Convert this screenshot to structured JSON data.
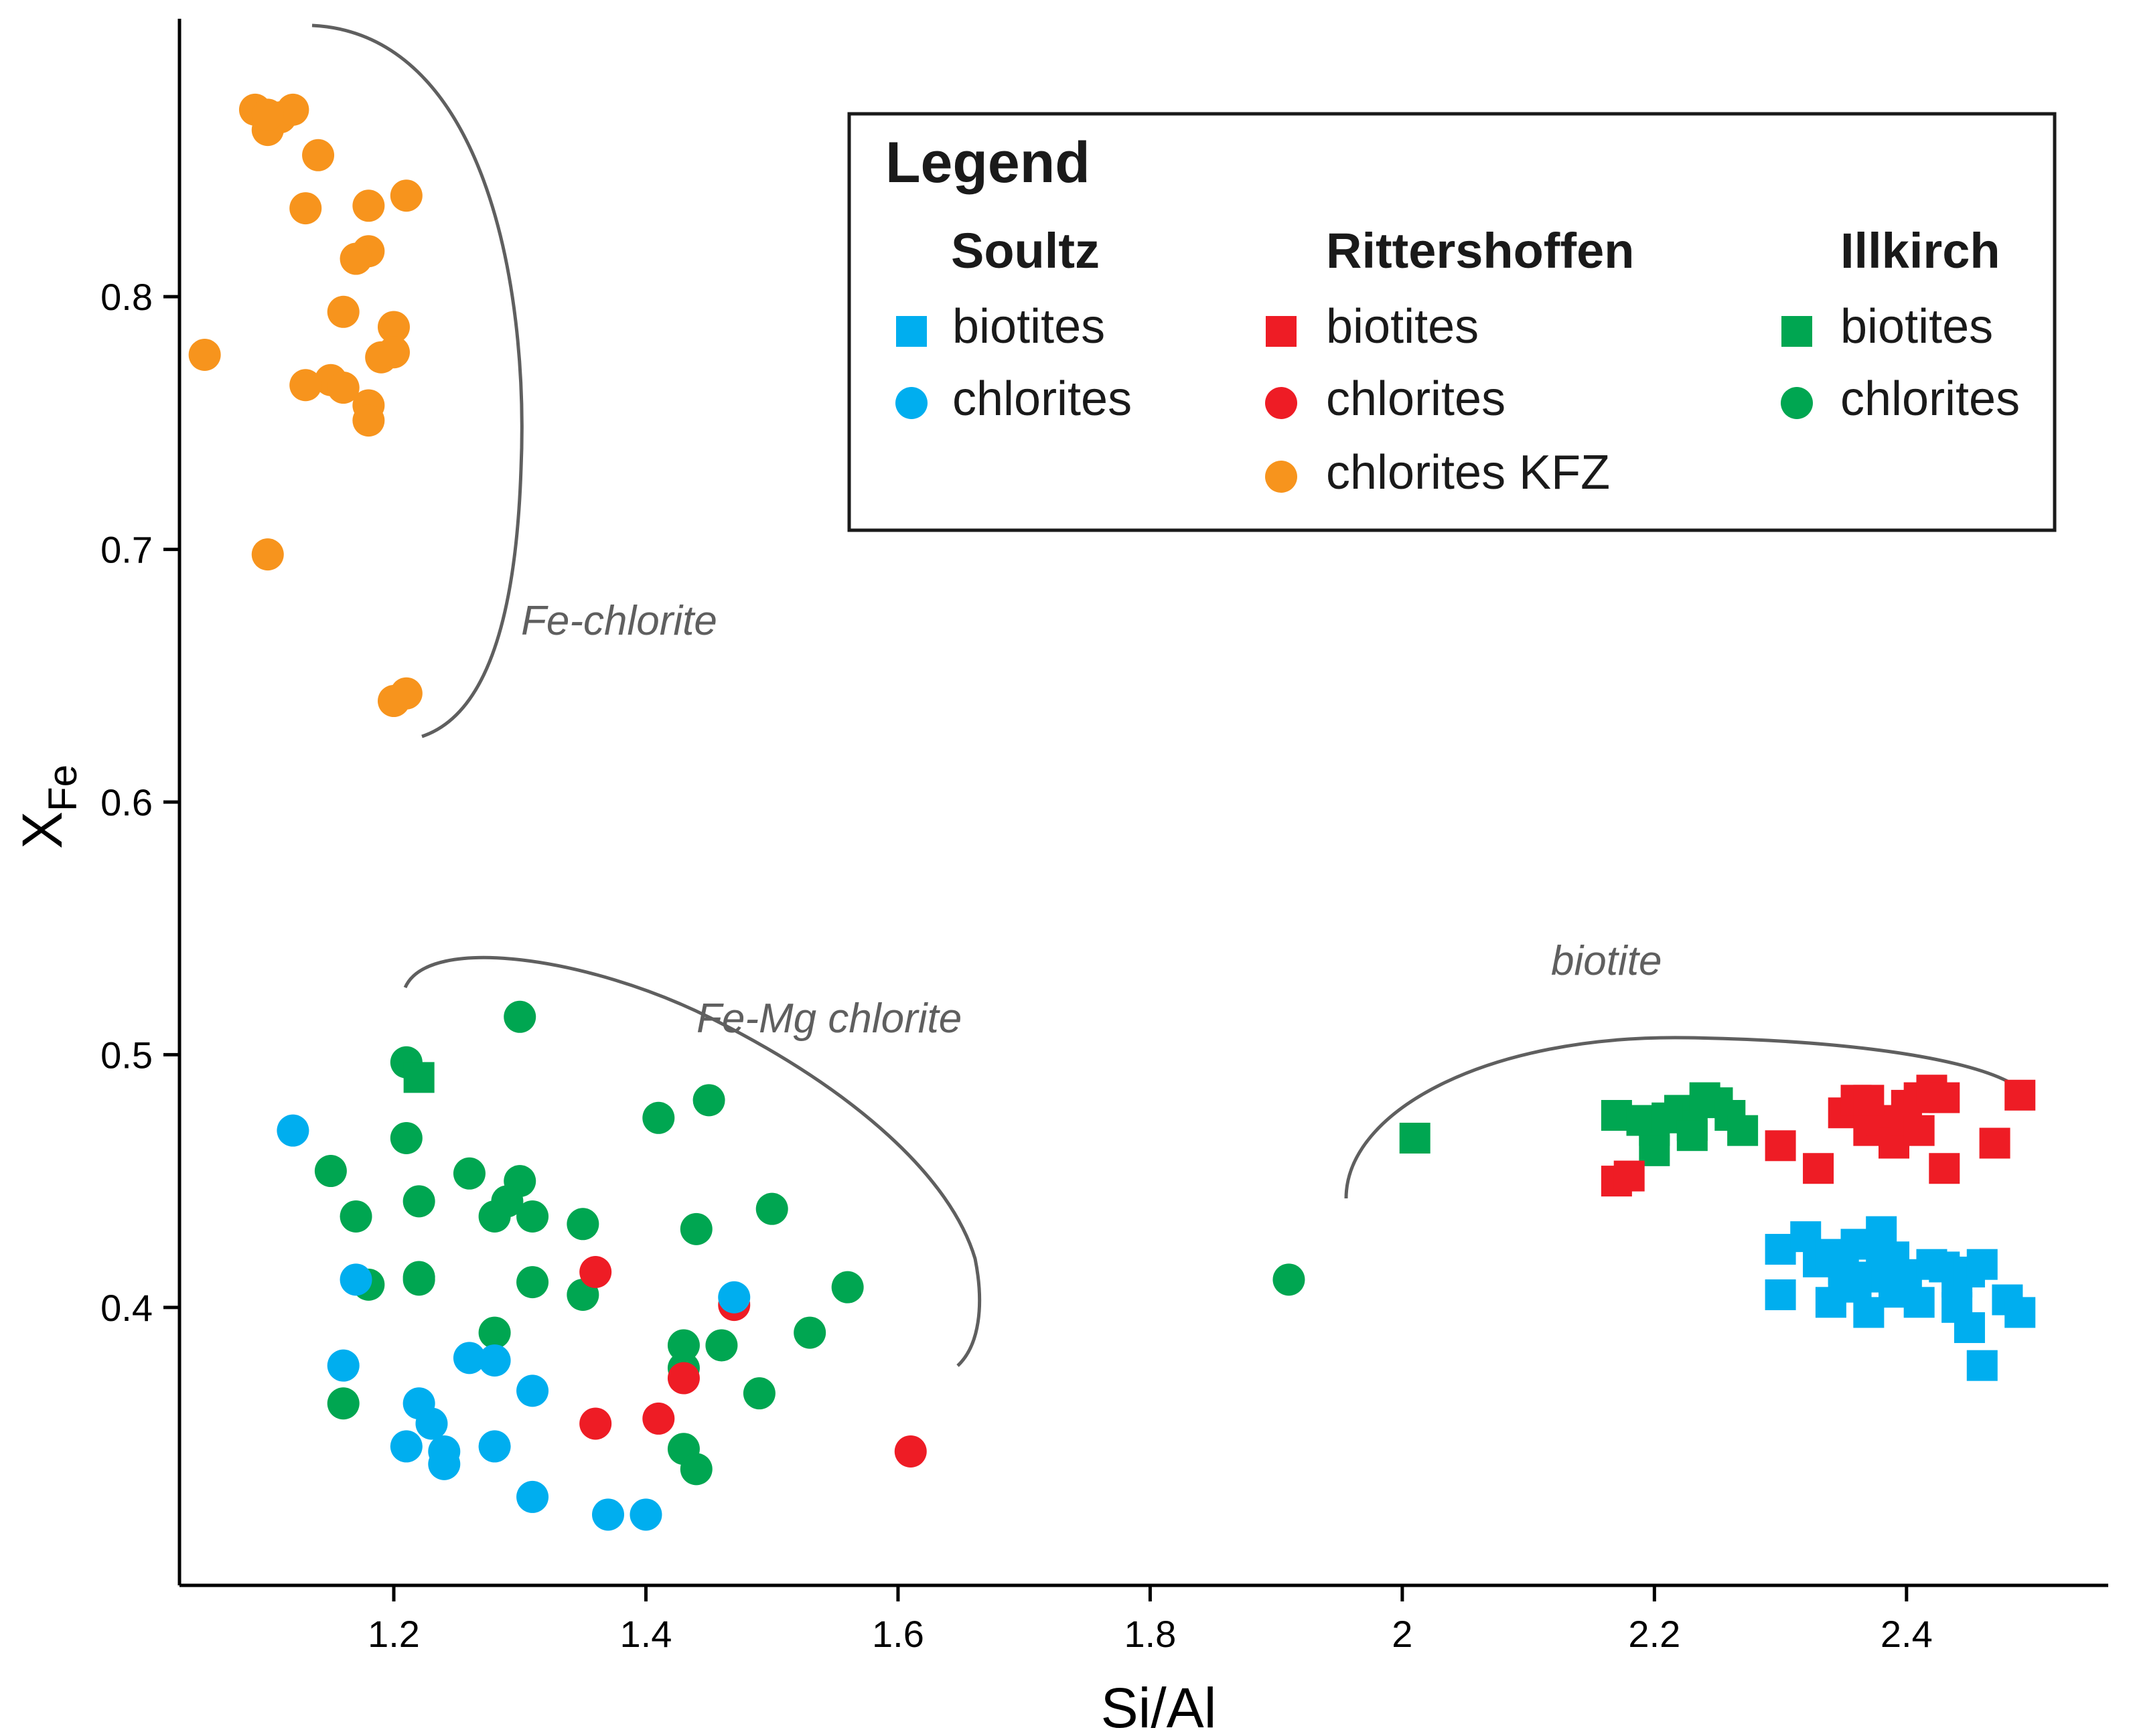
{
  "chart_data": {
    "type": "scatter",
    "xlabel": "Si/Al",
    "ylabel": "X",
    "ylabel_sub": "Fe",
    "xlim": [
      1.03,
      2.56
    ],
    "ylim": [
      0.29,
      0.91
    ],
    "xticks": [
      1.2,
      1.4,
      1.6,
      1.8,
      2,
      2.2,
      2.4
    ],
    "xtick_labels": [
      "1.2",
      "1.4",
      "1.6",
      "1.8",
      "2",
      "2.2",
      "2.4"
    ],
    "yticks": [
      0.4,
      0.5,
      0.6,
      0.7,
      0.8
    ],
    "ytick_labels": [
      "0.4",
      "0.5",
      "0.6",
      "0.7",
      "0.8"
    ],
    "grid": false,
    "legend_position": "top-right",
    "legend": {
      "title": "Legend",
      "groups": [
        {
          "name": "Soultz",
          "items": [
            {
              "label": "biotites",
              "marker": "square",
              "color": "#00aeef"
            },
            {
              "label": "chlorites",
              "marker": "circle",
              "color": "#00aeef"
            }
          ]
        },
        {
          "name": "Rittershoffen",
          "items": [
            {
              "label": "biotites",
              "marker": "square",
              "color": "#ee1c25"
            },
            {
              "label": "chlorites",
              "marker": "circle",
              "color": "#ee1c25"
            },
            {
              "label": "chlorites KFZ",
              "marker": "circle",
              "color": "#f7941d"
            }
          ]
        },
        {
          "name": "Illkirch",
          "items": [
            {
              "label": "biotites",
              "marker": "square",
              "color": "#00a651"
            },
            {
              "label": "chlorites",
              "marker": "circle",
              "color": "#00a651"
            }
          ]
        }
      ]
    },
    "annotations": [
      {
        "text": "Fe-chlorite"
      },
      {
        "text": "Fe-Mg chlorite"
      },
      {
        "text": "biotite"
      }
    ],
    "series": [
      {
        "site": "Rittershoffen",
        "mineral": "chlorites KFZ",
        "marker": "circle",
        "color": "#f7941d",
        "points": [
          [
            1.09,
            0.874
          ],
          [
            1.1,
            0.866
          ],
          [
            1.11,
            0.871
          ],
          [
            1.12,
            0.874
          ],
          [
            1.1,
            0.872
          ],
          [
            1.14,
            0.856
          ],
          [
            1.13,
            0.835
          ],
          [
            1.18,
            0.836
          ],
          [
            1.21,
            0.84
          ],
          [
            1.18,
            0.818
          ],
          [
            1.17,
            0.815
          ],
          [
            1.16,
            0.794
          ],
          [
            1.2,
            0.788
          ],
          [
            1.19,
            0.776
          ],
          [
            1.2,
            0.778
          ],
          [
            1.05,
            0.777
          ],
          [
            1.15,
            0.767
          ],
          [
            1.16,
            0.764
          ],
          [
            1.13,
            0.765
          ],
          [
            1.18,
            0.757
          ],
          [
            1.18,
            0.751
          ],
          [
            1.1,
            0.698
          ],
          [
            1.2,
            0.64
          ],
          [
            1.21,
            0.643
          ]
        ]
      },
      {
        "site": "Illkirch",
        "mineral": "chlorites",
        "marker": "circle",
        "color": "#00a651",
        "points": [
          [
            1.3,
            0.515
          ],
          [
            1.21,
            0.497
          ],
          [
            1.45,
            0.482
          ],
          [
            1.41,
            0.475
          ],
          [
            1.21,
            0.467
          ],
          [
            1.15,
            0.454
          ],
          [
            1.26,
            0.453
          ],
          [
            1.3,
            0.45
          ],
          [
            1.22,
            0.442
          ],
          [
            1.29,
            0.442
          ],
          [
            1.5,
            0.439
          ],
          [
            1.28,
            0.436
          ],
          [
            1.17,
            0.436
          ],
          [
            1.31,
            0.436
          ],
          [
            1.35,
            0.433
          ],
          [
            1.44,
            0.431
          ],
          [
            1.22,
            0.412
          ],
          [
            1.22,
            0.411
          ],
          [
            1.31,
            0.41
          ],
          [
            1.18,
            0.409
          ],
          [
            1.56,
            0.408
          ],
          [
            1.35,
            0.405
          ],
          [
            1.28,
            0.39
          ],
          [
            1.53,
            0.39
          ],
          [
            1.43,
            0.385
          ],
          [
            1.46,
            0.385
          ],
          [
            1.43,
            0.376
          ],
          [
            1.49,
            0.366
          ],
          [
            1.16,
            0.362
          ],
          [
            1.43,
            0.344
          ],
          [
            1.44,
            0.336
          ],
          [
            1.91,
            0.411
          ]
        ]
      },
      {
        "site": "Illkirch",
        "mineral": "biotites",
        "marker": "square",
        "color": "#00a651",
        "points": [
          [
            1.22,
            0.491
          ],
          [
            2.01,
            0.467
          ],
          [
            2.17,
            0.476
          ],
          [
            2.19,
            0.474
          ],
          [
            2.2,
            0.47
          ],
          [
            2.2,
            0.462
          ],
          [
            2.22,
            0.478
          ],
          [
            2.23,
            0.472
          ],
          [
            2.24,
            0.483
          ],
          [
            2.25,
            0.481
          ],
          [
            2.26,
            0.476
          ],
          [
            2.27,
            0.47
          ],
          [
            2.21,
            0.475
          ],
          [
            2.23,
            0.468
          ]
        ]
      },
      {
        "site": "Rittershoffen",
        "mineral": "chlorites",
        "marker": "circle",
        "color": "#ee1c25",
        "points": [
          [
            1.36,
            0.414
          ],
          [
            1.47,
            0.401
          ],
          [
            1.43,
            0.372
          ],
          [
            1.36,
            0.354
          ],
          [
            1.41,
            0.356
          ],
          [
            1.61,
            0.343
          ]
        ]
      },
      {
        "site": "Rittershoffen",
        "mineral": "biotites",
        "marker": "square",
        "color": "#ee1c25",
        "points": [
          [
            2.17,
            0.45
          ],
          [
            2.18,
            0.452
          ],
          [
            2.3,
            0.464
          ],
          [
            2.33,
            0.455
          ],
          [
            2.35,
            0.477
          ],
          [
            2.36,
            0.482
          ],
          [
            2.37,
            0.47
          ],
          [
            2.38,
            0.474
          ],
          [
            2.39,
            0.465
          ],
          [
            2.4,
            0.48
          ],
          [
            2.41,
            0.483
          ],
          [
            2.42,
            0.486
          ],
          [
            2.43,
            0.483
          ],
          [
            2.4,
            0.474
          ],
          [
            2.43,
            0.455
          ],
          [
            2.47,
            0.465
          ],
          [
            2.49,
            0.484
          ],
          [
            2.37,
            0.482
          ],
          [
            2.41,
            0.47
          ]
        ]
      },
      {
        "site": "Soultz",
        "mineral": "biotites",
        "marker": "square",
        "color": "#00aeef",
        "points": [
          [
            2.3,
            0.423
          ],
          [
            2.32,
            0.428
          ],
          [
            2.33,
            0.418
          ],
          [
            2.34,
            0.421
          ],
          [
            2.35,
            0.415
          ],
          [
            2.35,
            0.408
          ],
          [
            2.36,
            0.425
          ],
          [
            2.37,
            0.412
          ],
          [
            2.38,
            0.43
          ],
          [
            2.38,
            0.418
          ],
          [
            2.39,
            0.406
          ],
          [
            2.4,
            0.413
          ],
          [
            2.41,
            0.402
          ],
          [
            2.42,
            0.417
          ],
          [
            2.43,
            0.416
          ],
          [
            2.44,
            0.41
          ],
          [
            2.45,
            0.414
          ],
          [
            2.46,
            0.417
          ],
          [
            2.45,
            0.392
          ],
          [
            2.46,
            0.377
          ],
          [
            2.48,
            0.403
          ],
          [
            2.49,
            0.398
          ],
          [
            2.3,
            0.405
          ],
          [
            2.34,
            0.402
          ],
          [
            2.37,
            0.398
          ],
          [
            2.44,
            0.4
          ],
          [
            2.36,
            0.41
          ],
          [
            2.39,
            0.42
          ]
        ]
      },
      {
        "site": "Soultz",
        "mineral": "chlorites",
        "marker": "circle",
        "color": "#00aeef",
        "points": [
          [
            1.12,
            0.47
          ],
          [
            1.17,
            0.411
          ],
          [
            1.47,
            0.404
          ],
          [
            1.26,
            0.38
          ],
          [
            1.28,
            0.379
          ],
          [
            1.16,
            0.377
          ],
          [
            1.31,
            0.367
          ],
          [
            1.22,
            0.362
          ],
          [
            1.23,
            0.354
          ],
          [
            1.21,
            0.345
          ],
          [
            1.24,
            0.343
          ],
          [
            1.28,
            0.345
          ],
          [
            1.24,
            0.338
          ],
          [
            1.31,
            0.325
          ],
          [
            1.37,
            0.318
          ],
          [
            1.4,
            0.318
          ]
        ]
      }
    ]
  }
}
